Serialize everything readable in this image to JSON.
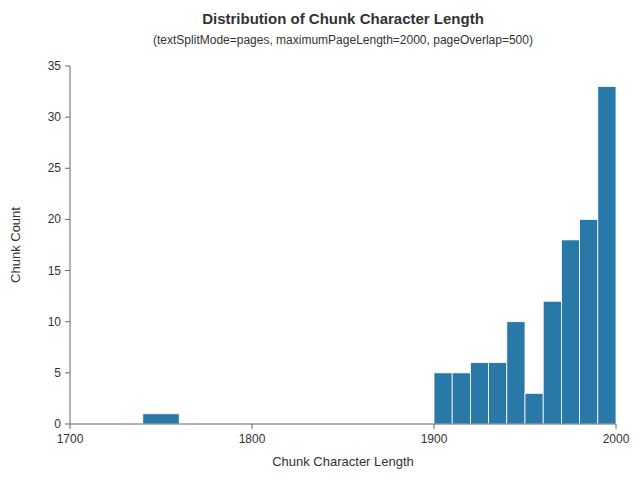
{
  "chart_data": {
    "type": "histogram",
    "title": "Distribution of Chunk Character Length",
    "subtitle": "(textSplitMode=pages, maximumPageLength=2000, pageOverlap=500)",
    "x_label": "Chunk Character Length",
    "y_label": "Chunk Count",
    "bins": [
      1740,
      1760,
      1900,
      1910,
      1920,
      1930,
      1940,
      1950,
      1960,
      1970,
      1980,
      1990,
      2000
    ],
    "values": [
      1,
      0,
      5,
      5,
      6,
      6,
      10,
      3,
      12,
      18,
      20,
      33
    ],
    "color": "#2878a8",
    "xlim": [
      1700,
      2000
    ],
    "ylim": [
      0,
      35
    ],
    "xticks": [
      1700,
      1800,
      1900,
      2000
    ],
    "yticks": [
      0,
      5,
      10,
      15,
      20,
      25,
      30,
      35
    ],
    "grid": false
  }
}
